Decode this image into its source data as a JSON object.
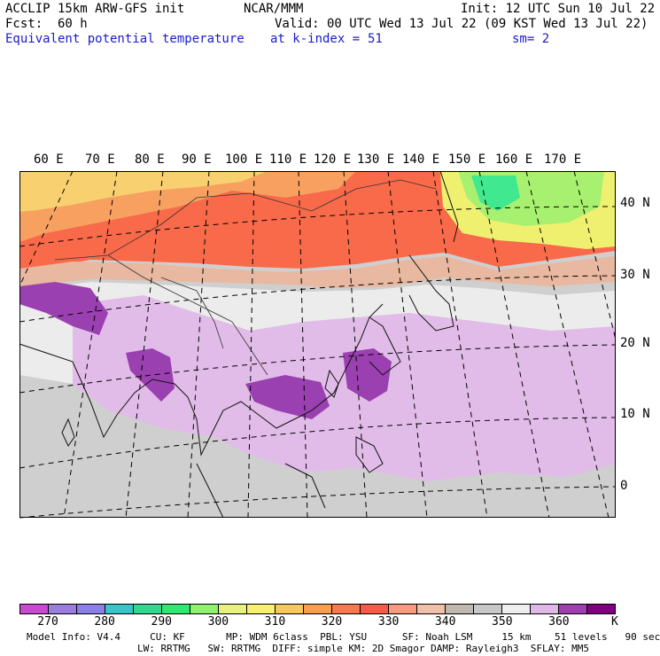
{
  "header": {
    "model_line": "ACCLIP 15km ARW-GFS init",
    "org": "NCAR/MMM",
    "init": "Init: 12 UTC Sun 10 Jul 22",
    "fcst_label": "Fcst:",
    "fcst_value": "60 h",
    "valid": "Valid: 00 UTC Wed 13 Jul 22 (09 KST Wed 13 Jul 22)",
    "field": "Equivalent potential temperature",
    "level": "at k-index =",
    "level_value": "51",
    "smoothing": "sm= 2"
  },
  "map": {
    "lon_labels": [
      "60 E",
      "70 E",
      "80 E",
      "90 E",
      "100 E",
      "110 E",
      "120 E",
      "130 E",
      "140 E",
      "150 E",
      "160 E",
      "170 E"
    ],
    "lat_labels": [
      "40 N",
      "30 N",
      "20 N",
      "10 N",
      "0"
    ]
  },
  "colorbar": {
    "labels": [
      "270",
      "280",
      "290",
      "300",
      "310",
      "320",
      "330",
      "340",
      "350",
      "360"
    ],
    "unit": "K",
    "colors": [
      "#c84ad0",
      "#9b7de0",
      "#8a80e8",
      "#3ac3c8",
      "#30d890",
      "#30e870",
      "#90f070",
      "#e8f080",
      "#f8f070",
      "#f8c860",
      "#f8a050",
      "#f87850",
      "#f85a48",
      "#f89a80",
      "#f0c0a8",
      "#c0b8b0",
      "#c8c8c8",
      "#eeeeee",
      "#e0b8e8",
      "#a040b0",
      "#800080"
    ]
  },
  "footer": {
    "line1": "Model Info: V4.4     CU: KF       MP: WDM 6class  PBL: YSU      SF: Noah LSM     15 km    51 levels   90 sec",
    "line2": "LW: RRTMG   SW: RRTMG  DIFF: simple KM: 2D Smagor DAMP: Rayleigh3  SFLAY: MM5"
  }
}
